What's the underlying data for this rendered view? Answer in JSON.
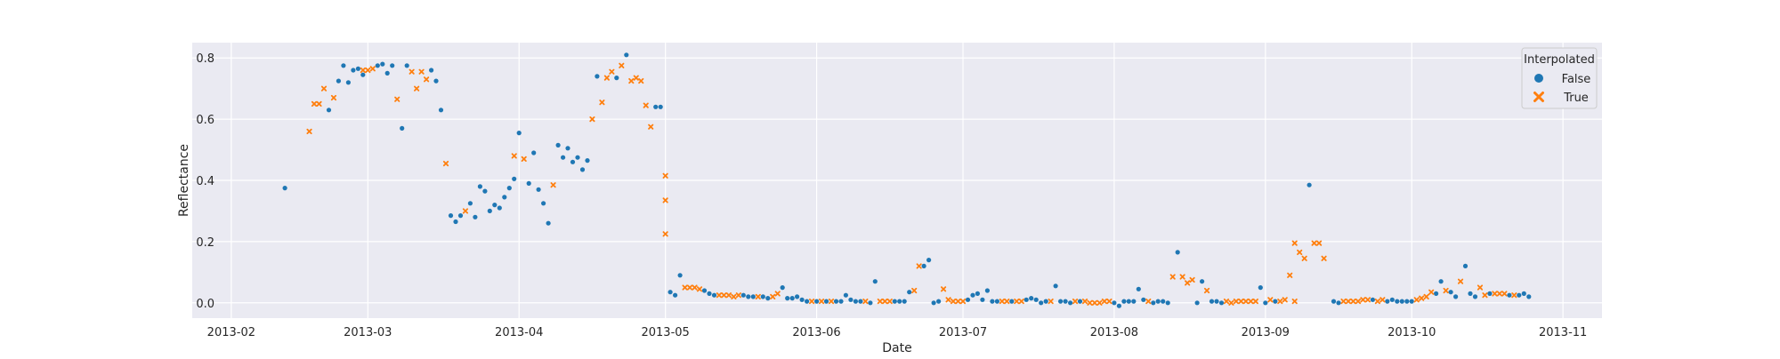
{
  "chart_data": {
    "type": "scatter",
    "title": "",
    "xlabel": "Date",
    "ylabel": "Reflectance",
    "xlim": [
      "2013-01-24",
      "2013-11-09"
    ],
    "ylim": [
      -0.05,
      0.85
    ],
    "x_ticks": [
      "2013-02",
      "2013-03",
      "2013-04",
      "2013-05",
      "2013-06",
      "2013-07",
      "2013-08",
      "2013-09",
      "2013-10",
      "2013-11"
    ],
    "y_ticks": [
      "0.0",
      "0.2",
      "0.4",
      "0.6",
      "0.8"
    ],
    "grid": true,
    "legend": {
      "title": "Interpolated",
      "placement": "top-right"
    },
    "series": [
      {
        "name": "False",
        "marker": "circle",
        "color": "#1f77b4",
        "points": [
          [
            "2013-02-12",
            0.375
          ],
          [
            "2013-02-21",
            0.63
          ],
          [
            "2013-02-23",
            0.725
          ],
          [
            "2013-02-24",
            0.775
          ],
          [
            "2013-02-25",
            0.72
          ],
          [
            "2013-02-26",
            0.76
          ],
          [
            "2013-02-27",
            0.765
          ],
          [
            "2013-02-28",
            0.745
          ],
          [
            "2013-03-03",
            0.775
          ],
          [
            "2013-03-04",
            0.78
          ],
          [
            "2013-03-05",
            0.75
          ],
          [
            "2013-03-06",
            0.775
          ],
          [
            "2013-03-08",
            0.57
          ],
          [
            "2013-03-09",
            0.775
          ],
          [
            "2013-03-14",
            0.76
          ],
          [
            "2013-03-15",
            0.725
          ],
          [
            "2013-03-16",
            0.63
          ],
          [
            "2013-03-18",
            0.285
          ],
          [
            "2013-03-19",
            0.265
          ],
          [
            "2013-03-20",
            0.285
          ],
          [
            "2013-03-22",
            0.325
          ],
          [
            "2013-03-23",
            0.28
          ],
          [
            "2013-03-24",
            0.38
          ],
          [
            "2013-03-25",
            0.365
          ],
          [
            "2013-03-26",
            0.3
          ],
          [
            "2013-03-27",
            0.32
          ],
          [
            "2013-03-28",
            0.31
          ],
          [
            "2013-03-29",
            0.345
          ],
          [
            "2013-03-30",
            0.375
          ],
          [
            "2013-03-31",
            0.405
          ],
          [
            "2013-04-01",
            0.555
          ],
          [
            "2013-04-03",
            0.39
          ],
          [
            "2013-04-04",
            0.49
          ],
          [
            "2013-04-05",
            0.37
          ],
          [
            "2013-04-06",
            0.325
          ],
          [
            "2013-04-07",
            0.26
          ],
          [
            "2013-04-09",
            0.515
          ],
          [
            "2013-04-10",
            0.475
          ],
          [
            "2013-04-11",
            0.505
          ],
          [
            "2013-04-12",
            0.46
          ],
          [
            "2013-04-13",
            0.475
          ],
          [
            "2013-04-14",
            0.435
          ],
          [
            "2013-04-15",
            0.465
          ],
          [
            "2013-04-17",
            0.74
          ],
          [
            "2013-04-21",
            0.735
          ],
          [
            "2013-04-23",
            0.81
          ],
          [
            "2013-04-29",
            0.64
          ],
          [
            "2013-04-30",
            0.64
          ],
          [
            "2013-05-02",
            0.035
          ],
          [
            "2013-05-03",
            0.025
          ],
          [
            "2013-05-04",
            0.09
          ],
          [
            "2013-05-09",
            0.04
          ],
          [
            "2013-05-10",
            0.03
          ],
          [
            "2013-05-11",
            0.025
          ],
          [
            "2013-05-17",
            0.025
          ],
          [
            "2013-05-18",
            0.02
          ],
          [
            "2013-05-19",
            0.02
          ],
          [
            "2013-05-21",
            0.02
          ],
          [
            "2013-05-22",
            0.015
          ],
          [
            "2013-05-25",
            0.05
          ],
          [
            "2013-05-26",
            0.015
          ],
          [
            "2013-05-27",
            0.015
          ],
          [
            "2013-05-28",
            0.02
          ],
          [
            "2013-05-29",
            0.01
          ],
          [
            "2013-05-30",
            0.005
          ],
          [
            "2013-06-01",
            0.005
          ],
          [
            "2013-06-03",
            0.005
          ],
          [
            "2013-06-05",
            0.005
          ],
          [
            "2013-06-06",
            0.005
          ],
          [
            "2013-06-07",
            0.025
          ],
          [
            "2013-06-08",
            0.01
          ],
          [
            "2013-06-09",
            0.005
          ],
          [
            "2013-06-10",
            0.005
          ],
          [
            "2013-06-12",
            0.0
          ],
          [
            "2013-06-13",
            0.07
          ],
          [
            "2013-06-17",
            0.005
          ],
          [
            "2013-06-18",
            0.005
          ],
          [
            "2013-06-19",
            0.005
          ],
          [
            "2013-06-20",
            0.035
          ],
          [
            "2013-06-23",
            0.12
          ],
          [
            "2013-06-24",
            0.14
          ],
          [
            "2013-06-25",
            0.0
          ],
          [
            "2013-06-26",
            0.005
          ],
          [
            "2013-07-02",
            0.01
          ],
          [
            "2013-07-03",
            0.025
          ],
          [
            "2013-07-04",
            0.03
          ],
          [
            "2013-07-05",
            0.01
          ],
          [
            "2013-07-06",
            0.04
          ],
          [
            "2013-07-07",
            0.005
          ],
          [
            "2013-07-08",
            0.005
          ],
          [
            "2013-07-11",
            0.005
          ],
          [
            "2013-07-14",
            0.01
          ],
          [
            "2013-07-15",
            0.015
          ],
          [
            "2013-07-16",
            0.01
          ],
          [
            "2013-07-17",
            0.0
          ],
          [
            "2013-07-18",
            0.005
          ],
          [
            "2013-07-20",
            0.055
          ],
          [
            "2013-07-21",
            0.005
          ],
          [
            "2013-07-22",
            0.005
          ],
          [
            "2013-07-23",
            0.0
          ],
          [
            "2013-07-25",
            0.005
          ],
          [
            "2013-08-01",
            0.0
          ],
          [
            "2013-08-02",
            -0.01
          ],
          [
            "2013-08-03",
            0.005
          ],
          [
            "2013-08-04",
            0.005
          ],
          [
            "2013-08-05",
            0.005
          ],
          [
            "2013-08-06",
            0.045
          ],
          [
            "2013-08-07",
            0.01
          ],
          [
            "2013-08-09",
            0.0
          ],
          [
            "2013-08-10",
            0.005
          ],
          [
            "2013-08-11",
            0.005
          ],
          [
            "2013-08-12",
            0.0
          ],
          [
            "2013-08-14",
            0.165
          ],
          [
            "2013-08-18",
            0.0
          ],
          [
            "2013-08-19",
            0.07
          ],
          [
            "2013-08-21",
            0.005
          ],
          [
            "2013-08-22",
            0.005
          ],
          [
            "2013-08-23",
            0.0
          ],
          [
            "2013-08-31",
            0.05
          ],
          [
            "2013-09-01",
            0.0
          ],
          [
            "2013-09-03",
            0.005
          ],
          [
            "2013-09-10",
            0.385
          ],
          [
            "2013-09-15",
            0.005
          ],
          [
            "2013-09-16",
            0.0
          ],
          [
            "2013-09-23",
            0.01
          ],
          [
            "2013-09-26",
            0.005
          ],
          [
            "2013-09-27",
            0.01
          ],
          [
            "2013-09-28",
            0.005
          ],
          [
            "2013-09-29",
            0.005
          ],
          [
            "2013-09-30",
            0.005
          ],
          [
            "2013-10-01",
            0.005
          ],
          [
            "2013-10-06",
            0.03
          ],
          [
            "2013-10-07",
            0.07
          ],
          [
            "2013-10-09",
            0.035
          ],
          [
            "2013-10-10",
            0.02
          ],
          [
            "2013-10-12",
            0.12
          ],
          [
            "2013-10-13",
            0.03
          ],
          [
            "2013-10-14",
            0.02
          ],
          [
            "2013-10-17",
            0.03
          ],
          [
            "2013-10-21",
            0.025
          ],
          [
            "2013-10-23",
            0.025
          ],
          [
            "2013-10-24",
            0.03
          ],
          [
            "2013-10-25",
            0.02
          ]
        ]
      },
      {
        "name": "True",
        "marker": "x",
        "color": "#ff7f0e",
        "points": [
          [
            "2013-02-17",
            0.56
          ],
          [
            "2013-02-18",
            0.65
          ],
          [
            "2013-02-19",
            0.65
          ],
          [
            "2013-02-20",
            0.7
          ],
          [
            "2013-02-22",
            0.67
          ],
          [
            "2013-02-28",
            0.76
          ],
          [
            "2013-03-01",
            0.76
          ],
          [
            "2013-03-02",
            0.765
          ],
          [
            "2013-03-07",
            0.665
          ],
          [
            "2013-03-10",
            0.755
          ],
          [
            "2013-03-11",
            0.7
          ],
          [
            "2013-03-12",
            0.755
          ],
          [
            "2013-03-13",
            0.73
          ],
          [
            "2013-03-17",
            0.455
          ],
          [
            "2013-03-21",
            0.3
          ],
          [
            "2013-03-31",
            0.48
          ],
          [
            "2013-04-02",
            0.47
          ],
          [
            "2013-04-08",
            0.385
          ],
          [
            "2013-04-16",
            0.6
          ],
          [
            "2013-04-18",
            0.655
          ],
          [
            "2013-04-19",
            0.735
          ],
          [
            "2013-04-20",
            0.755
          ],
          [
            "2013-04-22",
            0.775
          ],
          [
            "2013-04-24",
            0.725
          ],
          [
            "2013-04-25",
            0.735
          ],
          [
            "2013-04-26",
            0.725
          ],
          [
            "2013-04-27",
            0.645
          ],
          [
            "2013-04-28",
            0.575
          ],
          [
            "2013-05-01",
            0.415
          ],
          [
            "2013-05-01",
            0.335
          ],
          [
            "2013-05-01",
            0.225
          ],
          [
            "2013-05-05",
            0.05
          ],
          [
            "2013-05-06",
            0.05
          ],
          [
            "2013-05-07",
            0.05
          ],
          [
            "2013-05-08",
            0.045
          ],
          [
            "2013-05-12",
            0.025
          ],
          [
            "2013-05-13",
            0.025
          ],
          [
            "2013-05-14",
            0.025
          ],
          [
            "2013-05-15",
            0.02
          ],
          [
            "2013-05-16",
            0.025
          ],
          [
            "2013-05-20",
            0.02
          ],
          [
            "2013-05-23",
            0.02
          ],
          [
            "2013-05-24",
            0.03
          ],
          [
            "2013-05-31",
            0.005
          ],
          [
            "2013-06-02",
            0.005
          ],
          [
            "2013-06-04",
            0.005
          ],
          [
            "2013-06-11",
            0.005
          ],
          [
            "2013-06-14",
            0.005
          ],
          [
            "2013-06-15",
            0.005
          ],
          [
            "2013-06-16",
            0.005
          ],
          [
            "2013-06-21",
            0.04
          ],
          [
            "2013-06-22",
            0.12
          ],
          [
            "2013-06-27",
            0.045
          ],
          [
            "2013-06-28",
            0.01
          ],
          [
            "2013-06-29",
            0.005
          ],
          [
            "2013-06-30",
            0.005
          ],
          [
            "2013-07-01",
            0.005
          ],
          [
            "2013-07-09",
            0.005
          ],
          [
            "2013-07-10",
            0.005
          ],
          [
            "2013-07-12",
            0.005
          ],
          [
            "2013-07-13",
            0.005
          ],
          [
            "2013-07-19",
            0.005
          ],
          [
            "2013-07-24",
            0.005
          ],
          [
            "2013-07-26",
            0.005
          ],
          [
            "2013-07-27",
            0.0
          ],
          [
            "2013-07-28",
            0.0
          ],
          [
            "2013-07-29",
            0.0
          ],
          [
            "2013-07-30",
            0.005
          ],
          [
            "2013-07-31",
            0.005
          ],
          [
            "2013-08-08",
            0.005
          ],
          [
            "2013-08-13",
            0.085
          ],
          [
            "2013-08-15",
            0.085
          ],
          [
            "2013-08-16",
            0.065
          ],
          [
            "2013-08-17",
            0.075
          ],
          [
            "2013-08-20",
            0.04
          ],
          [
            "2013-08-24",
            0.005
          ],
          [
            "2013-08-25",
            0.0
          ],
          [
            "2013-08-26",
            0.005
          ],
          [
            "2013-08-27",
            0.005
          ],
          [
            "2013-08-28",
            0.005
          ],
          [
            "2013-08-29",
            0.005
          ],
          [
            "2013-08-30",
            0.005
          ],
          [
            "2013-09-02",
            0.01
          ],
          [
            "2013-09-04",
            0.005
          ],
          [
            "2013-09-05",
            0.01
          ],
          [
            "2013-09-06",
            0.09
          ],
          [
            "2013-09-07",
            0.005
          ],
          [
            "2013-09-07",
            0.195
          ],
          [
            "2013-09-08",
            0.165
          ],
          [
            "2013-09-09",
            0.145
          ],
          [
            "2013-09-11",
            0.195
          ],
          [
            "2013-09-12",
            0.195
          ],
          [
            "2013-09-13",
            0.145
          ],
          [
            "2013-09-17",
            0.005
          ],
          [
            "2013-09-18",
            0.005
          ],
          [
            "2013-09-19",
            0.005
          ],
          [
            "2013-09-20",
            0.005
          ],
          [
            "2013-09-21",
            0.01
          ],
          [
            "2013-09-22",
            0.01
          ],
          [
            "2013-09-24",
            0.005
          ],
          [
            "2013-09-25",
            0.01
          ],
          [
            "2013-10-02",
            0.01
          ],
          [
            "2013-10-03",
            0.015
          ],
          [
            "2013-10-04",
            0.02
          ],
          [
            "2013-10-05",
            0.035
          ],
          [
            "2013-10-08",
            0.04
          ],
          [
            "2013-10-11",
            0.07
          ],
          [
            "2013-10-15",
            0.05
          ],
          [
            "2013-10-16",
            0.025
          ],
          [
            "2013-10-18",
            0.03
          ],
          [
            "2013-10-19",
            0.03
          ],
          [
            "2013-10-20",
            0.03
          ],
          [
            "2013-10-22",
            0.025
          ]
        ]
      }
    ]
  }
}
